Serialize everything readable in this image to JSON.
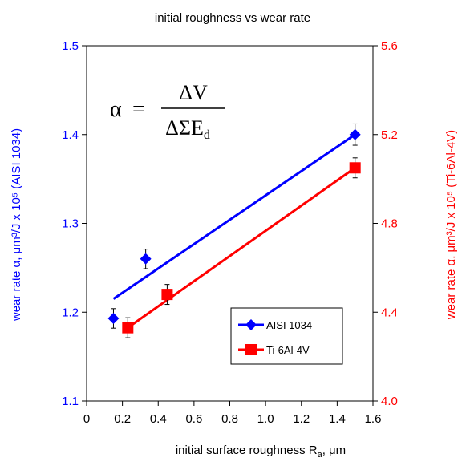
{
  "chart_data": {
    "type": "scatter",
    "title": "initial roughness vs wear rate",
    "xlabel": "initial surface roughness R",
    "xlabel_sub": "a",
    "xlabel_unit": ", μm",
    "ylabel_left": "wear rate α, μm³/J x 10⁵ (AISI 1034)",
    "ylabel_right": "wear rate α, μm³/J x 10⁵ (Ti-6Al-4V)",
    "xlim": [
      0,
      1.6
    ],
    "ylim_left": [
      1.1,
      1.5
    ],
    "ylim_right": [
      4.0,
      5.6
    ],
    "x_ticks": [
      "0",
      "0.2",
      "0.4",
      "0.6",
      "0.8",
      "1.0",
      "1.2",
      "1.4",
      "1.6"
    ],
    "y_ticks_left": [
      "1.1",
      "1.2",
      "1.3",
      "1.4",
      "1.5"
    ],
    "y_ticks_right": [
      "4.0",
      "4.4",
      "4.8",
      "5.2",
      "5.6"
    ],
    "grid": false,
    "legend_position": "lower-right",
    "formula": {
      "lhs": "α",
      "eq": "=",
      "numerator": "ΔV",
      "denominator": "ΔΣE",
      "denominator_sub": "d"
    },
    "series": [
      {
        "name": "AISI 1034",
        "axis": "left",
        "color": "#0000ff",
        "marker": "diamond",
        "points": [
          {
            "x": 0.15,
            "y": 1.193,
            "err": 0.011
          },
          {
            "x": 0.33,
            "y": 1.26,
            "err": 0.011
          },
          {
            "x": 1.5,
            "y": 1.4,
            "err": 0.012
          }
        ],
        "trend": {
          "x": [
            0.15,
            1.5
          ],
          "y": [
            1.215,
            1.4
          ]
        }
      },
      {
        "name": "Ti-6Al-4V",
        "axis": "right",
        "color": "#ff0000",
        "marker": "square",
        "points": [
          {
            "x": 0.23,
            "y": 4.33,
            "err": 0.045
          },
          {
            "x": 0.45,
            "y": 4.48,
            "err": 0.045
          },
          {
            "x": 1.5,
            "y": 5.05,
            "err": 0.045
          }
        ],
        "trend": {
          "x": [
            0.23,
            1.5
          ],
          "y": [
            4.33,
            5.05
          ]
        }
      }
    ]
  }
}
